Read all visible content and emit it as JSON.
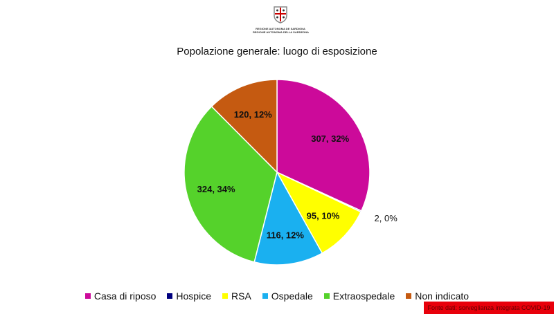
{
  "logo": {
    "line1": "REGIONE AUTONOMA DE SARDIGNA",
    "line2": "REGIONE AUTONOMA DELLA SARDEGNA"
  },
  "chart_data": {
    "type": "pie",
    "title": "Popolazione generale: luogo di esposizione",
    "categories": [
      "Casa di riposo",
      "Hospice",
      "RSA",
      "Ospedale",
      "Extraospedale",
      "Non indicato"
    ],
    "values": [
      307,
      2,
      95,
      116,
      324,
      120
    ],
    "labels": [
      "307, 32%",
      "2, 0%",
      "95, 10%",
      "116, 12%",
      "324, 34%",
      "120, 12%"
    ],
    "colors": [
      "#CC0A9A",
      "#00007F",
      "#FFFF00",
      "#1AB0F0",
      "#55D22B",
      "#C55A11"
    ],
    "legend": "bottom"
  },
  "footer": "Fonte dati: sorveglianza integrata COVID-19"
}
